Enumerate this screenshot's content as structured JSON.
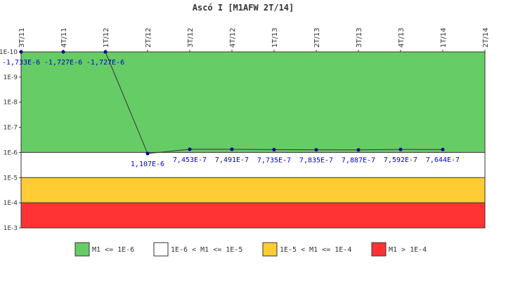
{
  "chart_data": {
    "type": "line",
    "title": "Ascó I [M1AFW 2T/14]",
    "y_scale": "log",
    "y_axis_inverted": true,
    "ylim": [
      1e-10,
      0.001
    ],
    "y_tick_labels": [
      "1E-10",
      "1E-9",
      "1E-8",
      "1E-7",
      "1E-6",
      "1E-5",
      "1E-4",
      "1E-3"
    ],
    "categories": [
      "3T/11",
      "4T/11",
      "1T/12",
      "2T/12",
      "3T/12",
      "4T/12",
      "1T/13",
      "2T/13",
      "3T/13",
      "4T/13",
      "1T/14",
      "2T/14"
    ],
    "series": [
      {
        "values": [
          -1.733e-06,
          -1.727e-06,
          -1.727e-06,
          1.107e-06,
          7.453e-07,
          7.491e-07,
          7.735e-07,
          7.835e-07,
          7.887e-07,
          7.592e-07,
          7.644e-07,
          null
        ],
        "labels": [
          "-1,733E-6",
          "-1,727E-6",
          "-1,727E-6",
          "1,107E-6",
          "7,453E-7",
          "7,491E-7",
          "7,735E-7",
          "7,835E-7",
          "7,887E-7",
          "7,592E-7",
          "7,644E-7",
          ""
        ],
        "color": "#000099",
        "line_color": "#333333"
      }
    ],
    "bands": [
      {
        "from": 1e-10,
        "to": 1e-06,
        "color": "#66cc66",
        "legend": "M1 <= 1E-6"
      },
      {
        "from": 1e-06,
        "to": 1e-05,
        "color": "#ffffff",
        "legend": "1E-6 < M1 <= 1E-5"
      },
      {
        "from": 1e-05,
        "to": 0.0001,
        "color": "#ffcc33",
        "legend": "1E-5 < M1 <= 1E-4"
      },
      {
        "from": 0.0001,
        "to": 0.001,
        "color": "#ff3333",
        "legend": "M1 > 1E-4"
      }
    ],
    "legend_position": "bottom"
  }
}
